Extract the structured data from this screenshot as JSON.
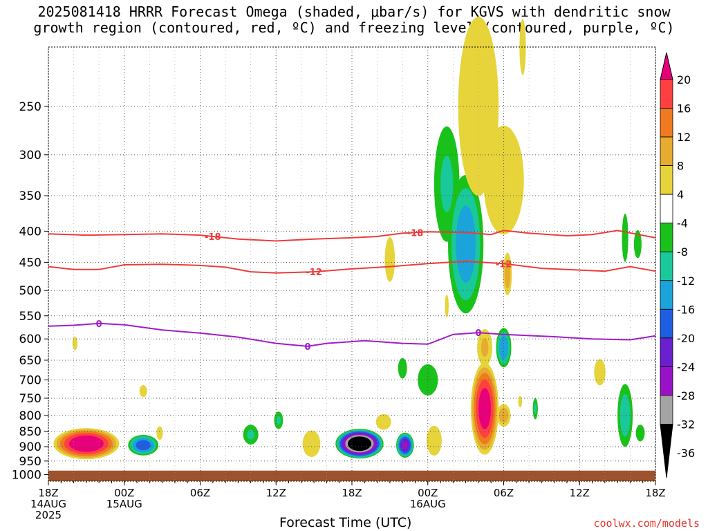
{
  "title_line1": "2025081418 HRRR Forecast Omega (shaded, μbar/s) for KGVS with dendritic snow",
  "title_line2": "growth region (contoured, red, ºC) and freezing level (contoured, purple, ºC)",
  "credit": "coolwx.com/models",
  "chart_data": {
    "type": "heatmap",
    "xlabel": "Forecast Time (UTC)",
    "ylabel": "",
    "x_ticks": [
      {
        "hour": 0,
        "lines": [
          "18Z",
          "14AUG",
          "2025"
        ]
      },
      {
        "hour": 6,
        "lines": [
          "00Z",
          "15AUG"
        ]
      },
      {
        "hour": 12,
        "lines": [
          "06Z"
        ]
      },
      {
        "hour": 18,
        "lines": [
          "12Z"
        ]
      },
      {
        "hour": 24,
        "lines": [
          "18Z"
        ]
      },
      {
        "hour": 30,
        "lines": [
          "00Z",
          "16AUG"
        ]
      },
      {
        "hour": 36,
        "lines": [
          "06Z"
        ]
      },
      {
        "hour": 42,
        "lines": [
          "12Z"
        ]
      },
      {
        "hour": 48,
        "lines": [
          "18Z"
        ]
      }
    ],
    "xlim": [
      0,
      48
    ],
    "y_ticks": [
      250,
      300,
      350,
      400,
      450,
      500,
      550,
      600,
      650,
      700,
      750,
      800,
      850,
      900,
      950,
      1000
    ],
    "ylim_hPa": [
      200,
      1025
    ],
    "y_scale": "log (pressure)",
    "grid": true,
    "colorbar": {
      "labels": [
        "20",
        "16",
        "12",
        "8",
        "4",
        "-4",
        "-8",
        "-12",
        "-16",
        "-20",
        "-24",
        "-28",
        "-32",
        "-36"
      ],
      "colors": [
        "#e8007a",
        "#ff4040",
        "#ef7a1f",
        "#e6ab2f",
        "#e6d43a",
        "#ffffff",
        "#18c21b",
        "#19c89b",
        "#1aa4da",
        "#1e5ee0",
        "#6a1fd0",
        "#9a12c8",
        "#a4a4a4",
        "#000000"
      ]
    },
    "contours": [
      {
        "label": "-18",
        "color": "#ef3b3b",
        "label_hours": [
          13,
          29
        ],
        "points": [
          [
            0,
            404
          ],
          [
            3,
            406
          ],
          [
            6,
            405
          ],
          [
            9,
            404
          ],
          [
            12,
            406
          ],
          [
            15,
            412
          ],
          [
            18,
            415
          ],
          [
            21,
            412
          ],
          [
            24,
            410
          ],
          [
            26,
            408
          ],
          [
            28,
            403
          ],
          [
            30,
            401
          ],
          [
            33,
            402
          ],
          [
            35,
            405
          ],
          [
            36,
            399
          ],
          [
            38,
            403
          ],
          [
            41,
            407
          ],
          [
            43,
            405
          ],
          [
            45,
            399
          ],
          [
            48,
            410
          ]
        ]
      },
      {
        "label": "-12",
        "color": "#ef3b3b",
        "label_hours": [
          21,
          36
        ],
        "points": [
          [
            0,
            457
          ],
          [
            2,
            462
          ],
          [
            4,
            462
          ],
          [
            6,
            454
          ],
          [
            9,
            453
          ],
          [
            12,
            455
          ],
          [
            14,
            458
          ],
          [
            16,
            466
          ],
          [
            18,
            468
          ],
          [
            21,
            466
          ],
          [
            24,
            461
          ],
          [
            27,
            457
          ],
          [
            30,
            452
          ],
          [
            33,
            448
          ],
          [
            36,
            452
          ],
          [
            39,
            460
          ],
          [
            42,
            463
          ],
          [
            44,
            465
          ],
          [
            46,
            457
          ],
          [
            48,
            465
          ]
        ]
      },
      {
        "label": "0",
        "color": "#a01cc8",
        "label_hours": [
          4,
          20.5,
          34
        ],
        "points": [
          [
            0,
            572
          ],
          [
            2,
            570
          ],
          [
            4,
            566
          ],
          [
            6,
            569
          ],
          [
            9,
            580
          ],
          [
            12,
            587
          ],
          [
            15,
            596
          ],
          [
            18,
            610
          ],
          [
            20.5,
            617
          ],
          [
            22,
            610
          ],
          [
            25,
            604
          ],
          [
            28,
            610
          ],
          [
            30,
            612
          ],
          [
            32,
            590
          ],
          [
            34,
            586
          ],
          [
            36,
            590
          ],
          [
            40,
            595
          ],
          [
            43,
            600
          ],
          [
            46,
            602
          ],
          [
            48,
            593
          ]
        ]
      }
    ],
    "omega_features": [
      {
        "hour": 3.0,
        "hPa": 890,
        "dh": 2.6,
        "dp": 95,
        "peak": 24
      },
      {
        "hour": 7.5,
        "hPa": 895,
        "dh": 1.2,
        "dp": 60,
        "peak": -18
      },
      {
        "hour": 7.5,
        "hPa": 730,
        "dh": 0.3,
        "dp": 25,
        "peak": 6
      },
      {
        "hour": 8.8,
        "hPa": 855,
        "dh": 0.25,
        "dp": 35,
        "peak": 5
      },
      {
        "hour": 2.1,
        "hPa": 610,
        "dh": 0.2,
        "dp": 25,
        "peak": 6
      },
      {
        "hour": 16.0,
        "hPa": 860,
        "dh": 0.6,
        "dp": 55,
        "peak": -8
      },
      {
        "hour": 18.2,
        "hPa": 815,
        "dh": 0.35,
        "dp": 45,
        "peak": -8
      },
      {
        "hour": 20.8,
        "hPa": 890,
        "dh": 0.7,
        "dp": 80,
        "peak": 6
      },
      {
        "hour": 24.6,
        "hPa": 890,
        "dh": 1.9,
        "dp": 90,
        "peak": -38
      },
      {
        "hour": 26.5,
        "hPa": 820,
        "dh": 0.6,
        "dp": 40,
        "peak": 5
      },
      {
        "hour": 28.2,
        "hPa": 895,
        "dh": 0.7,
        "dp": 75,
        "peak": -24
      },
      {
        "hour": 30.5,
        "hPa": 880,
        "dh": 0.6,
        "dp": 90,
        "peak": 6
      },
      {
        "hour": 27.0,
        "hPa": 445,
        "dh": 0.4,
        "dp": 70,
        "peak": 6
      },
      {
        "hour": 31.5,
        "hPa": 530,
        "dh": 0.15,
        "dp": 40,
        "peak": 5
      },
      {
        "hour": 30.0,
        "hPa": 700,
        "dh": 0.8,
        "dp": 75,
        "peak": -7
      },
      {
        "hour": 28.0,
        "hPa": 670,
        "dh": 0.35,
        "dp": 45,
        "peak": -7
      },
      {
        "hour": 31.5,
        "hPa": 335,
        "dh": 1.0,
        "dp": 140,
        "peak": -8
      },
      {
        "hour": 33.0,
        "hPa": 420,
        "dh": 1.4,
        "dp": 210,
        "peak": -14
      },
      {
        "hour": 34.0,
        "hPa": 250,
        "dh": 1.6,
        "dp": 160,
        "peak": 7
      },
      {
        "hour": 36.0,
        "hPa": 330,
        "dh": 1.6,
        "dp": 130,
        "peak": 6
      },
      {
        "hour": 36.3,
        "hPa": 470,
        "dh": 0.35,
        "dp": 70,
        "peak": 10
      },
      {
        "hour": 34.5,
        "hPa": 780,
        "dh": 1.1,
        "dp": 260,
        "peak": 22
      },
      {
        "hour": 34.5,
        "hPa": 620,
        "dh": 0.6,
        "dp": 80,
        "peak": 8
      },
      {
        "hour": 36.0,
        "hPa": 620,
        "dh": 0.6,
        "dp": 85,
        "peak": -15
      },
      {
        "hour": 36.0,
        "hPa": 800,
        "dh": 0.55,
        "dp": 60,
        "peak": 10
      },
      {
        "hour": 38.5,
        "hPa": 780,
        "dh": 0.2,
        "dp": 55,
        "peak": -8
      },
      {
        "hour": 37.3,
        "hPa": 760,
        "dh": 0.15,
        "dp": 25,
        "peak": 5
      },
      {
        "hour": 37.5,
        "hPa": 200,
        "dh": 0.25,
        "dp": 40,
        "peak": 6
      },
      {
        "hour": 43.6,
        "hPa": 680,
        "dh": 0.45,
        "dp": 60,
        "peak": 6
      },
      {
        "hour": 45.6,
        "hPa": 800,
        "dh": 0.6,
        "dp": 180,
        "peak": -10
      },
      {
        "hour": 46.8,
        "hPa": 855,
        "dh": 0.35,
        "dp": 45,
        "peak": -6
      },
      {
        "hour": 45.6,
        "hPa": 410,
        "dh": 0.25,
        "dp": 70,
        "peak": -7
      },
      {
        "hour": 46.6,
        "hPa": 420,
        "dh": 0.3,
        "dp": 40,
        "peak": -7
      }
    ],
    "ground_below_hPa": 985
  }
}
